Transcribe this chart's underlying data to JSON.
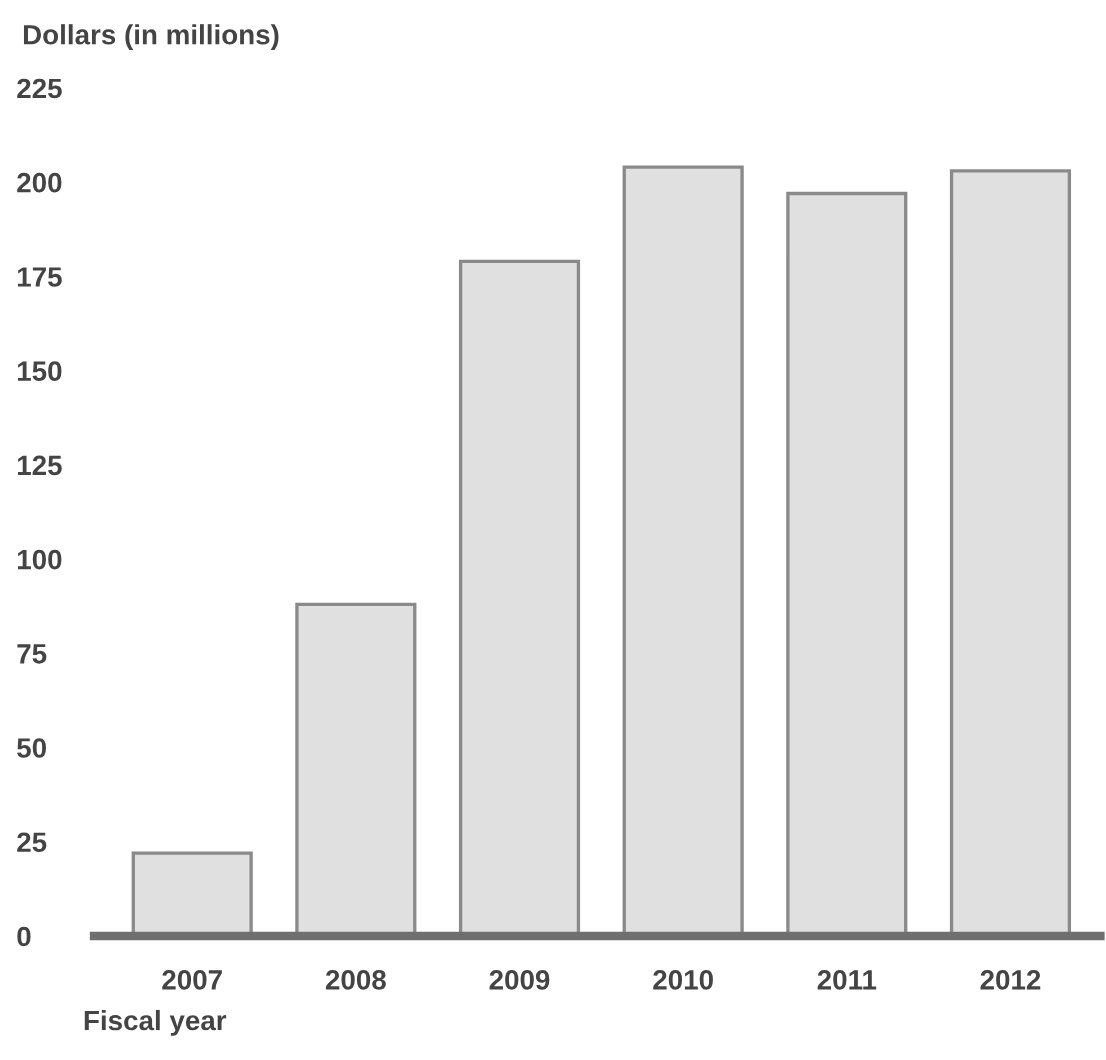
{
  "chart_data": {
    "type": "bar",
    "ylabel": "Dollars (in millions)",
    "xlabel": "Fiscal year",
    "categories": [
      "2007",
      "2008",
      "2009",
      "2010",
      "2011",
      "2012"
    ],
    "values": [
      22,
      88,
      179,
      204,
      197,
      203
    ],
    "color": "#e0e0e0",
    "ylim": [
      0,
      225
    ],
    "yticks": [
      0,
      25,
      50,
      75,
      100,
      125,
      150,
      175,
      200,
      225
    ],
    "grid": false,
    "legend": false
  }
}
